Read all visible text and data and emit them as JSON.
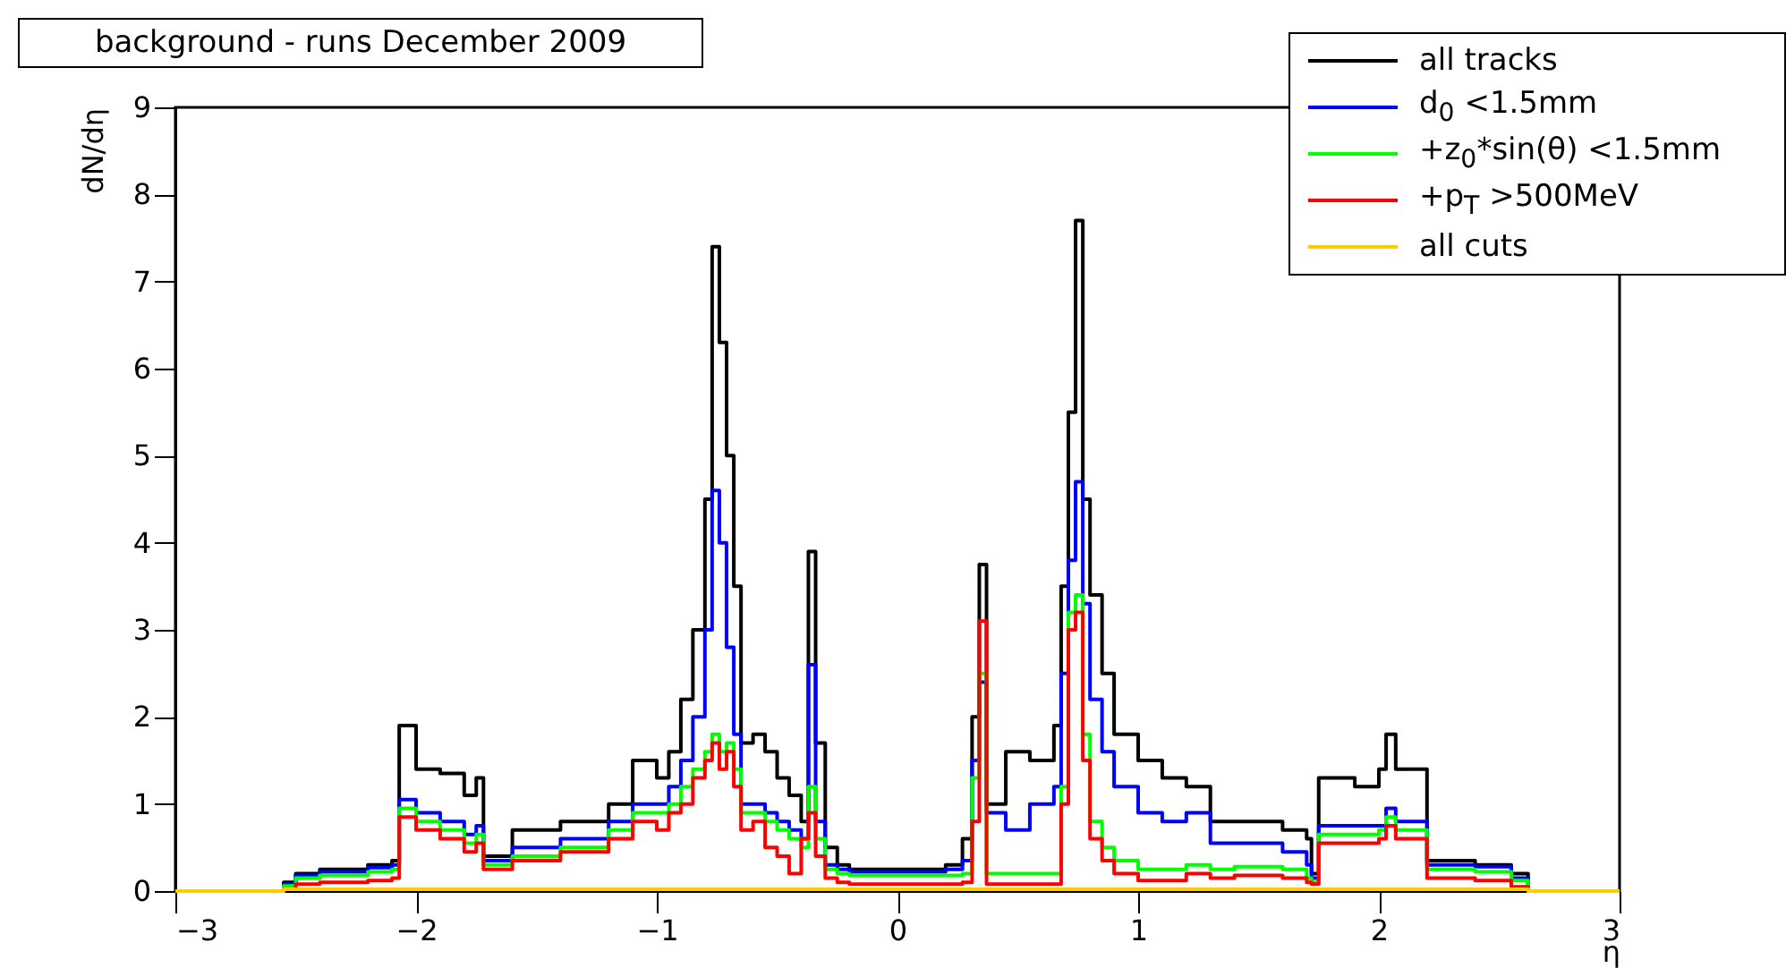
{
  "chart_data": {
    "type": "step",
    "title": "background - runs December 2009",
    "xlabel": "η",
    "ylabel": "dN/dη",
    "xlim": [
      -3,
      3
    ],
    "xticks": [
      -3,
      -2,
      -1,
      0,
      1,
      2,
      3
    ],
    "ylim": [
      0,
      9
    ],
    "yticks": [
      0,
      1,
      2,
      3,
      4,
      5,
      6,
      7,
      8,
      9
    ],
    "grid": false,
    "legend": "top right",
    "line_style": "solid",
    "x": [
      -3,
      -2.55,
      -2.5,
      -2.4,
      -2.2,
      -2.1,
      -2.07,
      -2.0,
      -1.9,
      -1.8,
      -1.75,
      -1.72,
      -1.6,
      -1.4,
      -1.2,
      -1.1,
      -1.0,
      -0.95,
      -0.9,
      -0.85,
      -0.8,
      -0.77,
      -0.74,
      -0.71,
      -0.68,
      -0.65,
      -0.6,
      -0.55,
      -0.5,
      -0.45,
      -0.4,
      -0.37,
      -0.34,
      -0.3,
      -0.25,
      -0.2,
      0,
      0.2,
      0.27,
      0.31,
      0.34,
      0.37,
      0.45,
      0.55,
      0.65,
      0.68,
      0.71,
      0.74,
      0.77,
      0.8,
      0.85,
      0.9,
      1.0,
      1.1,
      1.2,
      1.3,
      1.4,
      1.6,
      1.7,
      1.72,
      1.75,
      1.9,
      2.0,
      2.03,
      2.07,
      2.2,
      2.4,
      2.55,
      2.62,
      3.0
    ],
    "series": [
      {
        "name": "all tracks",
        "color": "#000000",
        "values": [
          0,
          0.1,
          0.2,
          0.25,
          0.3,
          0.35,
          1.9,
          1.4,
          1.35,
          1.1,
          1.3,
          0.4,
          0.7,
          0.8,
          1.0,
          1.5,
          1.3,
          1.6,
          2.2,
          3.0,
          4.5,
          7.4,
          6.3,
          5.0,
          3.5,
          1.7,
          1.8,
          1.6,
          1.3,
          1.1,
          0.8,
          3.9,
          1.7,
          0.5,
          0.3,
          0.25,
          0.25,
          0.3,
          0.6,
          2.0,
          3.75,
          1.0,
          1.6,
          1.5,
          1.9,
          3.5,
          5.5,
          7.7,
          4.5,
          3.4,
          2.5,
          1.8,
          1.5,
          1.3,
          1.2,
          0.8,
          0.8,
          0.7,
          0.6,
          0.2,
          1.3,
          1.2,
          1.4,
          1.8,
          1.4,
          0.35,
          0.3,
          0.2,
          0,
          0
        ]
      },
      {
        "name": "d$_{0}$ <1.5mm",
        "color": "#0000ff",
        "values": [
          0,
          0.08,
          0.18,
          0.22,
          0.27,
          0.3,
          1.05,
          0.9,
          0.8,
          0.65,
          0.75,
          0.35,
          0.5,
          0.6,
          0.8,
          1.0,
          1.0,
          1.2,
          1.5,
          2.0,
          3.0,
          4.6,
          4.0,
          2.8,
          1.8,
          1.0,
          1.0,
          0.9,
          0.8,
          0.7,
          0.6,
          2.6,
          0.8,
          0.3,
          0.25,
          0.22,
          0.22,
          0.25,
          0.35,
          1.5,
          2.4,
          0.9,
          0.7,
          1.0,
          1.2,
          2.5,
          3.8,
          4.7,
          3.3,
          2.2,
          1.6,
          1.2,
          0.9,
          0.8,
          0.9,
          0.55,
          0.55,
          0.45,
          0.3,
          0.15,
          0.75,
          0.75,
          0.75,
          0.95,
          0.8,
          0.3,
          0.28,
          0.15,
          0,
          0
        ]
      },
      {
        "name": "+z$_{0}$*sin(θ) <1.5mm",
        "color": "#00ff00",
        "values": [
          0,
          0.06,
          0.15,
          0.18,
          0.22,
          0.25,
          0.95,
          0.8,
          0.7,
          0.55,
          0.65,
          0.3,
          0.4,
          0.5,
          0.7,
          0.9,
          0.9,
          1.0,
          1.2,
          1.4,
          1.6,
          1.8,
          1.6,
          1.7,
          1.4,
          0.9,
          0.9,
          0.8,
          0.7,
          0.6,
          0.5,
          1.2,
          0.6,
          0.25,
          0.2,
          0.18,
          0.18,
          0.18,
          0.2,
          1.3,
          2.5,
          0.2,
          0.2,
          0.2,
          0.2,
          1.2,
          3.2,
          3.4,
          1.8,
          0.8,
          0.5,
          0.35,
          0.25,
          0.25,
          0.3,
          0.25,
          0.28,
          0.25,
          0.15,
          0.1,
          0.65,
          0.65,
          0.7,
          0.85,
          0.7,
          0.25,
          0.22,
          0.12,
          0,
          0
        ]
      },
      {
        "name": "+p$_{T}$ >500MeV",
        "color": "#ff0000",
        "values": [
          0,
          0.02,
          0.08,
          0.1,
          0.12,
          0.15,
          0.85,
          0.7,
          0.6,
          0.45,
          0.55,
          0.25,
          0.35,
          0.45,
          0.6,
          0.8,
          0.7,
          0.9,
          1.0,
          1.3,
          1.5,
          1.7,
          1.4,
          1.6,
          1.2,
          0.7,
          0.8,
          0.5,
          0.4,
          0.2,
          0.6,
          0.9,
          0.4,
          0.15,
          0.1,
          0.08,
          0.08,
          0.08,
          0.1,
          0.8,
          3.1,
          0.08,
          0.08,
          0.08,
          0.08,
          1.0,
          3.0,
          3.2,
          1.5,
          0.6,
          0.35,
          0.2,
          0.12,
          0.12,
          0.2,
          0.15,
          0.18,
          0.15,
          0.1,
          0.08,
          0.55,
          0.55,
          0.6,
          0.75,
          0.6,
          0.15,
          0.12,
          0.05,
          0,
          0
        ]
      },
      {
        "name": "all cuts",
        "color": "#ffcc00",
        "values": [
          0,
          0.02,
          0.02,
          0.02,
          0.02,
          0.02,
          0.02,
          0.02,
          0.02,
          0.02,
          0.02,
          0.02,
          0.02,
          0.02,
          0.02,
          0.02,
          0.02,
          0.02,
          0.02,
          0.02,
          0.02,
          0.02,
          0.02,
          0.02,
          0.02,
          0.02,
          0.02,
          0.02,
          0.02,
          0.02,
          0.02,
          0.02,
          0.02,
          0.02,
          0.02,
          0.02,
          0.02,
          0.02,
          0.02,
          0.02,
          0.02,
          0.02,
          0.02,
          0.02,
          0.02,
          0.02,
          0.02,
          0.02,
          0.02,
          0.02,
          0.02,
          0.02,
          0.02,
          0.02,
          0.02,
          0.02,
          0.02,
          0.02,
          0.02,
          0.02,
          0.02,
          0.02,
          0.02,
          0.02,
          0.02,
          0.02,
          0.02,
          0.02,
          0,
          0
        ]
      }
    ]
  }
}
